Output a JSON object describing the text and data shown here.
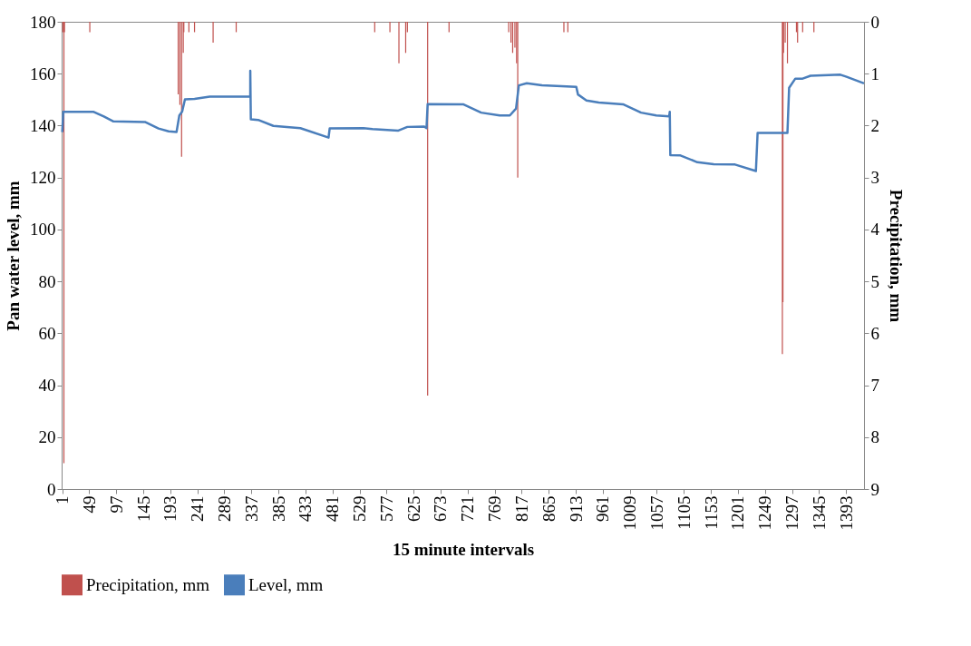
{
  "chart_data": {
    "type": "line",
    "xlabel": "15 minute intervals",
    "ylabel": "Pan water level, mm",
    "y2label": "Precipitation, mm",
    "xlim": [
      0,
      1425
    ],
    "xticks": [
      1,
      49,
      97,
      145,
      193,
      241,
      289,
      337,
      385,
      433,
      481,
      529,
      577,
      625,
      673,
      721,
      769,
      817,
      865,
      913,
      961,
      1009,
      1057,
      1105,
      1153,
      1201,
      1249,
      1297,
      1345,
      1393
    ],
    "ylim": [
      0,
      180
    ],
    "yticks": [
      0,
      20,
      40,
      60,
      80,
      100,
      120,
      140,
      160,
      180
    ],
    "y2lim": [
      9,
      0
    ],
    "y2ticks": [
      0,
      1,
      2,
      3,
      4,
      5,
      6,
      7,
      8,
      9
    ],
    "grid": false,
    "legend": "bottom",
    "series": [
      {
        "name": "Precipitation, mm",
        "type": "bar",
        "axis": "y2",
        "color": "#c0504d",
        "x": [
          2,
          4,
          5,
          50,
          207,
          210,
          213,
          216,
          217,
          226,
          236,
          269,
          310,
          556,
          583,
          599,
          611,
          614,
          650,
          688,
          794,
          798,
          801,
          805,
          808,
          810,
          892,
          899,
          1280,
          1281,
          1282,
          1285,
          1289,
          1305,
          1307,
          1316,
          1336
        ],
        "values": [
          0.2,
          8.5,
          0.2,
          0.2,
          1.4,
          1.6,
          2.6,
          0.6,
          0.2,
          0.2,
          0.2,
          0.4,
          0.2,
          0.2,
          0.2,
          0.8,
          0.6,
          0.2,
          7.2,
          0.2,
          0.2,
          0.4,
          0.6,
          0.5,
          0.8,
          3.0,
          0.2,
          0.2,
          6.4,
          5.4,
          0.6,
          0.4,
          0.8,
          0.2,
          0.4,
          0.2,
          0.2
        ]
      },
      {
        "name": "Level, mm",
        "color": "#4a7ebb",
        "x": [
          1,
          3,
          57,
          75,
          92,
          148,
          172,
          190,
          204,
          209,
          214,
          219,
          236,
          263,
          335,
          335,
          336,
          349,
          376,
          424,
          474,
          476,
          536,
          552,
          598,
          614,
          644,
          648,
          650,
          713,
          745,
          778,
          796,
          807,
          812,
          826,
          853,
          914,
          917,
          932,
          954,
          997,
          1029,
          1056,
          1079,
          1080,
          1081,
          1099,
          1129,
          1158,
          1196,
          1233,
          1236,
          1289,
          1292,
          1303,
          1316,
          1330,
          1383,
          1394,
          1425
        ],
        "values": [
          137.5,
          145.3,
          145.3,
          143.5,
          141.6,
          141.4,
          138.9,
          137.8,
          137.5,
          143.9,
          145.4,
          150.1,
          150.3,
          151.2,
          151.2,
          161.1,
          142.4,
          142.2,
          139.9,
          139.0,
          135.4,
          138.9,
          139.0,
          138.7,
          138.1,
          139.5,
          139.6,
          139.0,
          148.3,
          148.2,
          145.0,
          143.9,
          143.9,
          146.6,
          155.5,
          156.3,
          155.5,
          154.9,
          152.0,
          149.7,
          148.9,
          148.2,
          145.0,
          143.9,
          143.6,
          145.3,
          128.6,
          128.5,
          125.9,
          125.1,
          125.0,
          122.5,
          137.2,
          137.2,
          154.6,
          158.1,
          158.1,
          159.2,
          159.6,
          158.8,
          156.3
        ]
      }
    ]
  }
}
